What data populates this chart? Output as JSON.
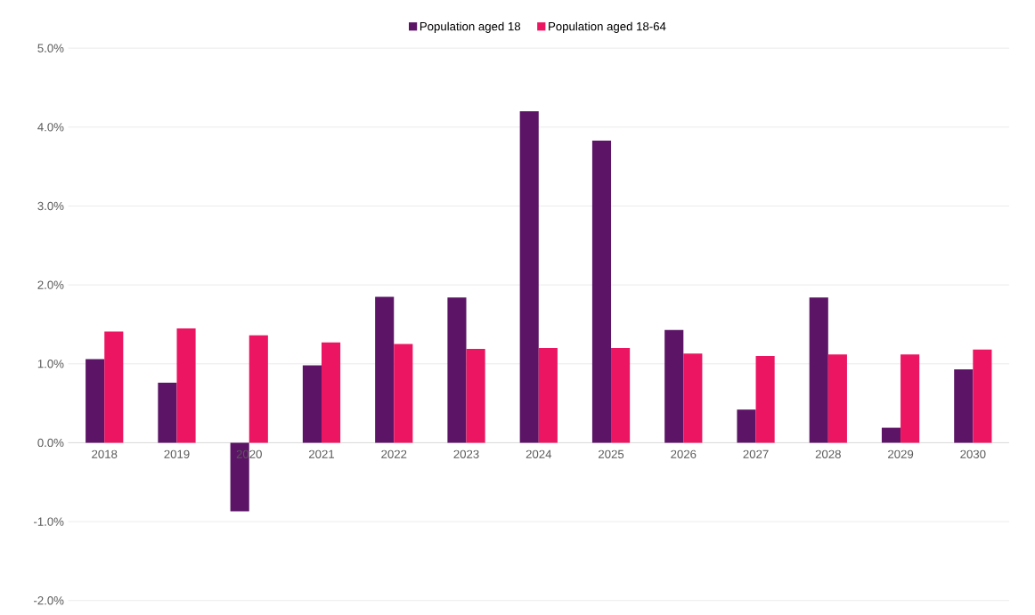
{
  "chart_data": {
    "type": "bar",
    "categories": [
      "2018",
      "2019",
      "2020",
      "2021",
      "2022",
      "2023",
      "2024",
      "2025",
      "2026",
      "2027",
      "2028",
      "2029",
      "2030"
    ],
    "series": [
      {
        "name": "Population aged 18",
        "color": "#5c1566",
        "values": [
          1.06,
          0.76,
          -0.87,
          0.98,
          1.85,
          1.84,
          4.2,
          3.83,
          1.43,
          0.42,
          1.84,
          0.19,
          0.93
        ]
      },
      {
        "name": "Population aged 18-64",
        "color": "#ec1561",
        "values": [
          1.41,
          1.45,
          1.36,
          1.27,
          1.25,
          1.19,
          1.2,
          1.2,
          1.13,
          1.1,
          1.12,
          1.12,
          1.18
        ]
      }
    ],
    "ylim": [
      -2,
      5
    ],
    "yticks": [
      {
        "value": -2,
        "label": "-2.0%"
      },
      {
        "value": -1,
        "label": "-1.0%"
      },
      {
        "value": 0,
        "label": "0.0%"
      },
      {
        "value": 1,
        "label": "1.0%"
      },
      {
        "value": 2,
        "label": "2.0%"
      },
      {
        "value": 3,
        "label": "3.0%"
      },
      {
        "value": 4,
        "label": "4.0%"
      },
      {
        "value": 5,
        "label": "5.0%"
      }
    ],
    "grid": "y",
    "legend": "top"
  }
}
